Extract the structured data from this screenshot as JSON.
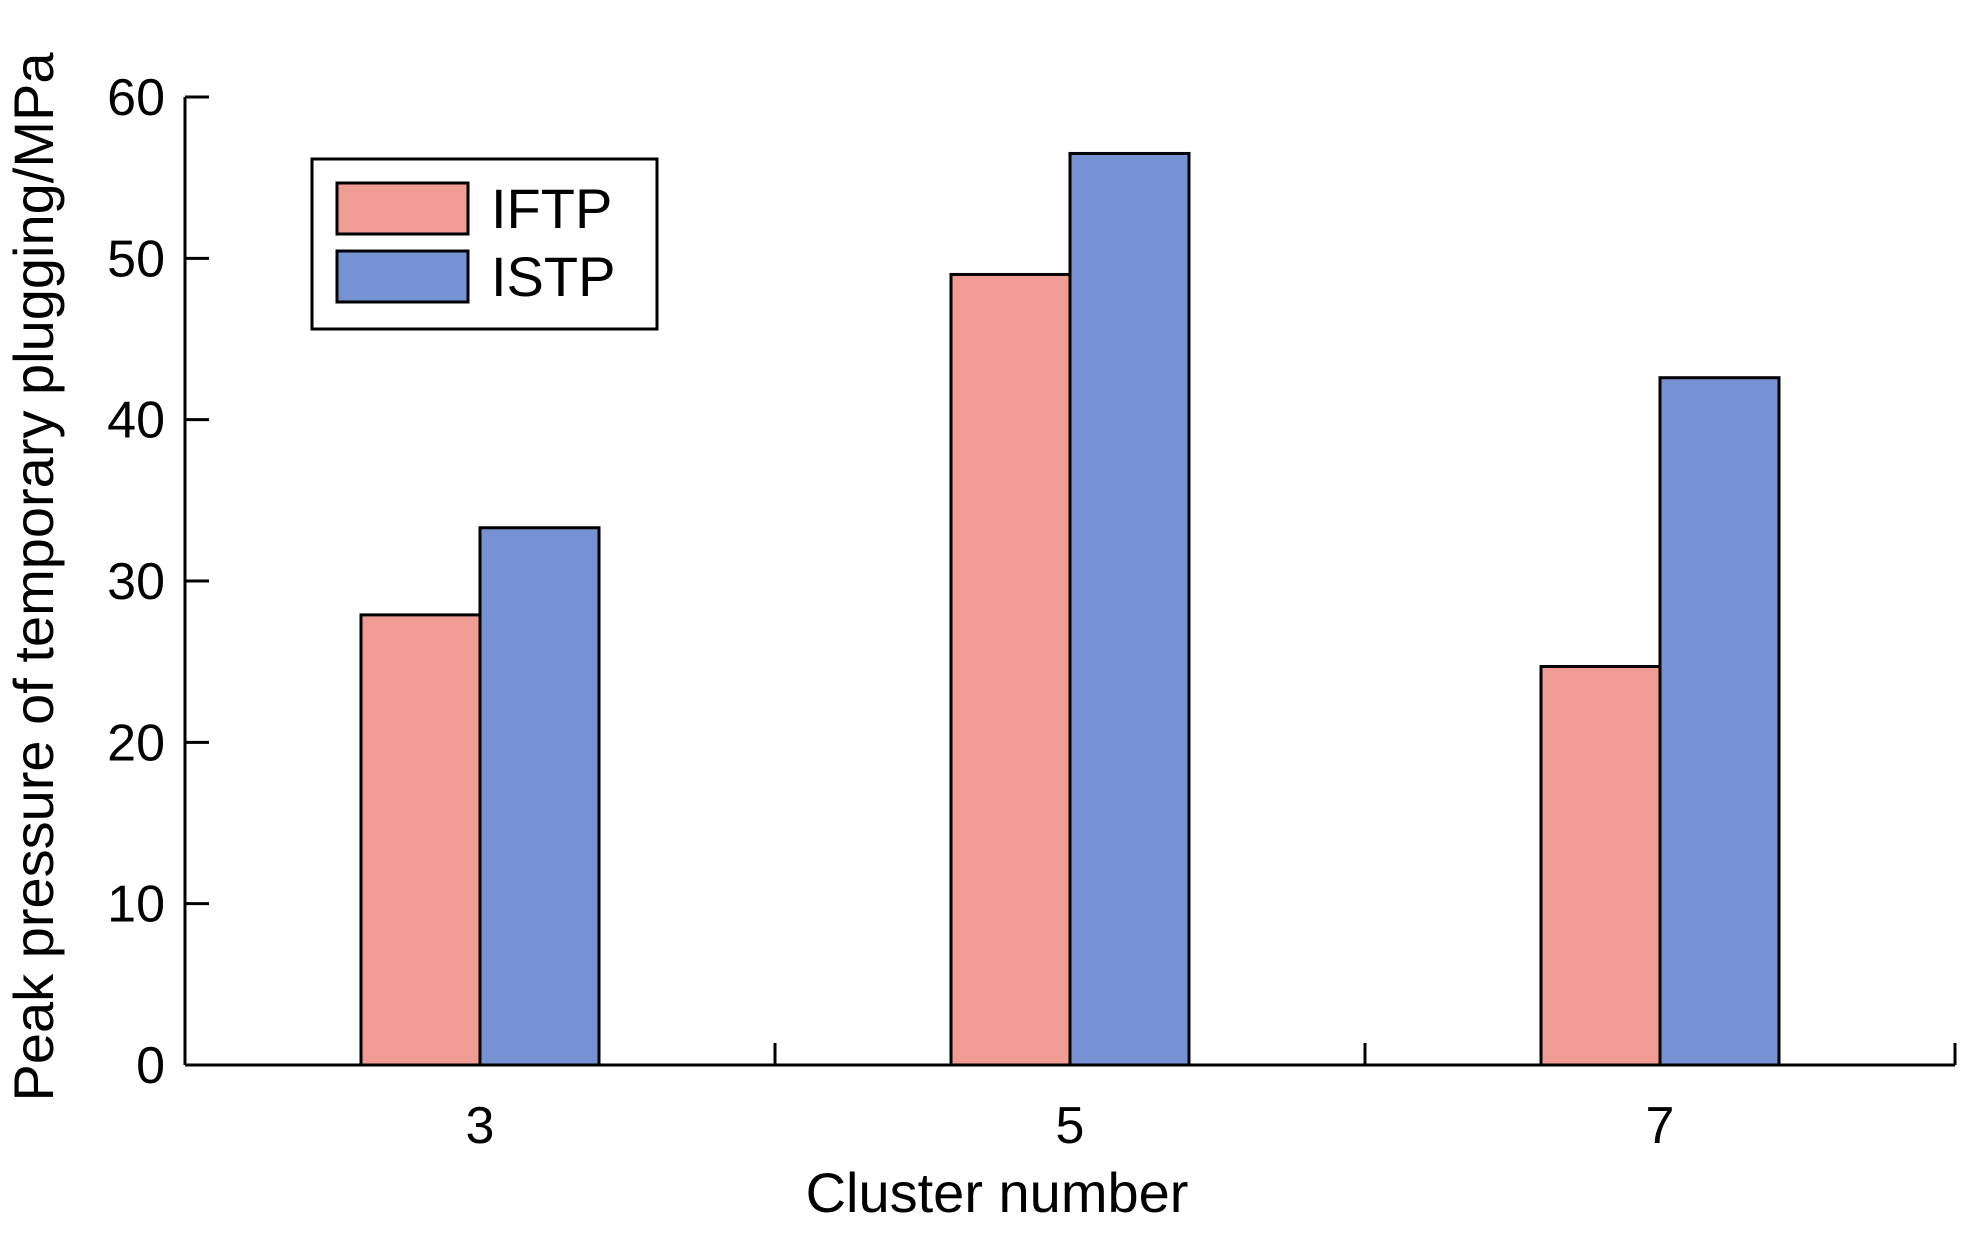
{
  "chart_data": {
    "type": "bar",
    "categories": [
      "3",
      "5",
      "7"
    ],
    "series": [
      {
        "name": "IFTP",
        "values": [
          27.9,
          49.0,
          24.7
        ],
        "color": "#ef9c95"
      },
      {
        "name": "ISTP",
        "values": [
          33.3,
          56.5,
          42.6
        ],
        "color": "#7792d2"
      }
    ],
    "xlabel": "Cluster number",
    "ylabel": "Peak pressure of temporary plugging/MPa",
    "ylim": [
      0,
      60
    ],
    "yticks": [
      0,
      10,
      20,
      30,
      40,
      50,
      60
    ],
    "grid": false,
    "legend": "top-left"
  }
}
